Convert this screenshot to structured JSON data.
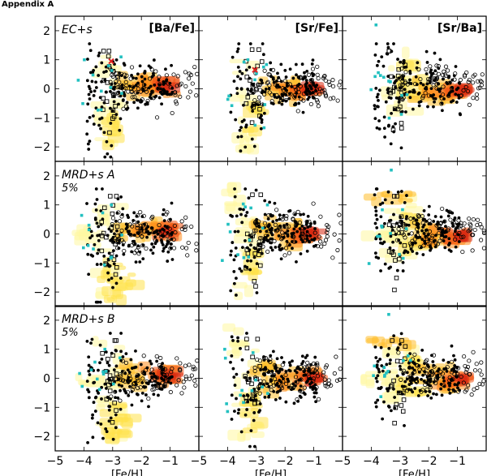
{
  "heading": "Appendix A",
  "chart_data": {
    "type": "scatter",
    "layout": "3x3 grid of panels, shared axes",
    "xlabel": "[Fe/H]",
    "xlim": [
      -5,
      0
    ],
    "ylim": [
      -2.5,
      2.5
    ],
    "xticks": [
      -5,
      -4,
      -3,
      -2,
      -1
    ],
    "yticks": [
      -2,
      -1,
      0,
      1,
      2
    ],
    "columns": [
      "[Ba/Fe]",
      "[Sr/Fe]",
      "[Sr/Ba]"
    ],
    "rows": [
      {
        "label": "EC+s",
        "sublabel": ""
      },
      {
        "label": "MRD+s A",
        "sublabel": "5%"
      },
      {
        "label": "MRD+s B",
        "sublabel": "5%"
      }
    ],
    "legend_position": "top-right (column label in each top panel)",
    "series": [
      {
        "name": "Model (density, yellow to red)",
        "kind": "heatmap"
      },
      {
        "name": "Observed stars (filled circles)",
        "marker": "filled-circle",
        "color": "#000000"
      },
      {
        "name": "Observed stars (open circles)",
        "marker": "open-circle",
        "color": "#000000"
      },
      {
        "name": "Observed stars (open squares)",
        "marker": "open-square",
        "color": "#000000"
      },
      {
        "name": "Observed stars (cyan)",
        "marker": "cyan",
        "color": "#22c0c0"
      },
      {
        "name": "Highlighted star",
        "marker": "red-x",
        "color": "#e02020"
      }
    ]
  }
}
